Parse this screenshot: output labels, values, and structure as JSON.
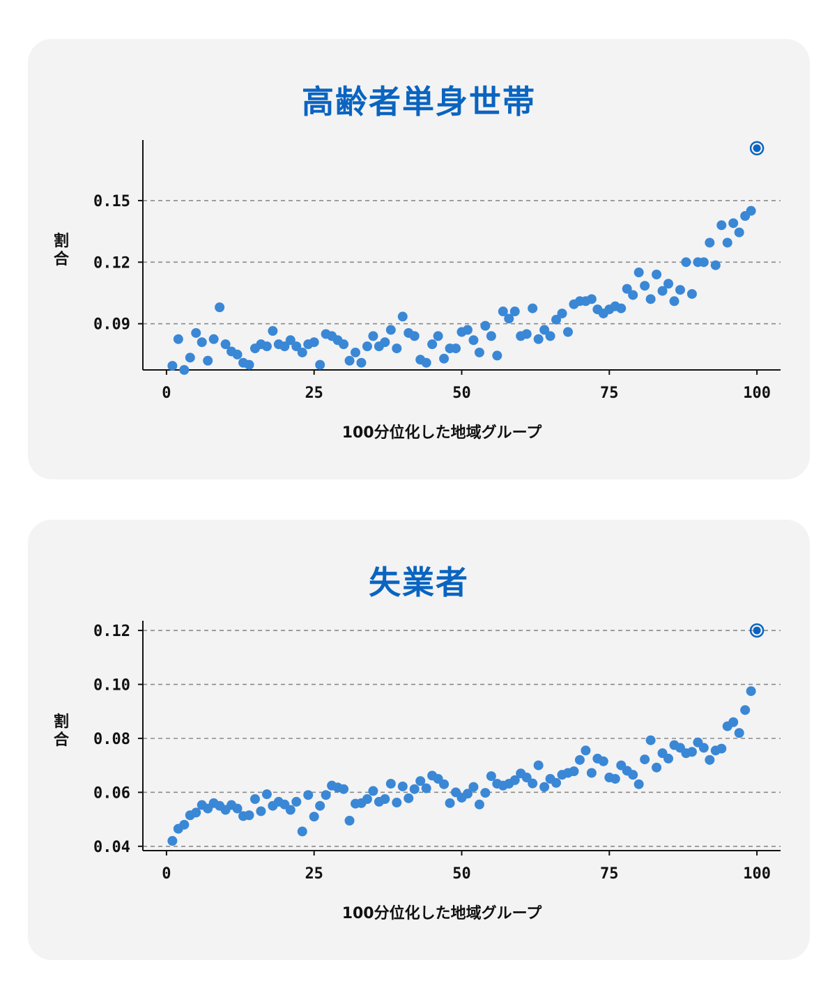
{
  "accent_color": "#0a64c0",
  "point_color": "#3a87d6",
  "chart_data": [
    {
      "type": "scatter",
      "title": "高齢者単身世帯",
      "xlabel": "100分位化した地域グループ",
      "ylabel": "割合",
      "xlim": [
        -4,
        104
      ],
      "ylim": [
        0.0675,
        0.1795
      ],
      "xticks": [
        0,
        25,
        50,
        75,
        100
      ],
      "xtick_labels": [
        "0",
        "25",
        "50",
        "75",
        "100"
      ],
      "yticks": [
        0.09,
        0.12,
        0.15
      ],
      "ytick_labels": [
        "0.09",
        "0.12",
        "0.15"
      ],
      "grid": "horizontal dashed",
      "x": [
        1,
        2,
        3,
        4,
        5,
        6,
        7,
        8,
        9,
        10,
        11,
        12,
        13,
        14,
        15,
        16,
        17,
        18,
        19,
        20,
        21,
        22,
        23,
        24,
        25,
        26,
        27,
        28,
        29,
        30,
        31,
        32,
        33,
        34,
        35,
        36,
        37,
        38,
        39,
        40,
        41,
        42,
        43,
        44,
        45,
        46,
        47,
        48,
        49,
        50,
        51,
        52,
        53,
        54,
        55,
        56,
        57,
        58,
        59,
        60,
        61,
        62,
        63,
        64,
        65,
        66,
        67,
        68,
        69,
        70,
        71,
        72,
        73,
        74,
        75,
        76,
        77,
        78,
        79,
        80,
        81,
        82,
        83,
        84,
        85,
        86,
        87,
        88,
        89,
        90,
        91,
        92,
        93,
        94,
        95,
        96,
        97,
        98,
        99,
        100
      ],
      "y": [
        0.0695,
        0.0825,
        0.0675,
        0.0735,
        0.0855,
        0.081,
        0.072,
        0.0825,
        0.098,
        0.08,
        0.0765,
        0.075,
        0.071,
        0.07,
        0.078,
        0.08,
        0.079,
        0.0865,
        0.08,
        0.079,
        0.082,
        0.079,
        0.076,
        0.08,
        0.081,
        0.07,
        0.085,
        0.084,
        0.082,
        0.08,
        0.072,
        0.076,
        0.071,
        0.079,
        0.084,
        0.079,
        0.081,
        0.087,
        0.078,
        0.0935,
        0.0855,
        0.084,
        0.0725,
        0.071,
        0.08,
        0.084,
        0.073,
        0.078,
        0.078,
        0.086,
        0.087,
        0.082,
        0.076,
        0.089,
        0.084,
        0.0745,
        0.096,
        0.0925,
        0.096,
        0.084,
        0.085,
        0.0975,
        0.0825,
        0.087,
        0.084,
        0.092,
        0.095,
        0.086,
        0.0995,
        0.101,
        0.101,
        0.102,
        0.097,
        0.095,
        0.097,
        0.0985,
        0.0975,
        0.107,
        0.104,
        0.115,
        0.1085,
        0.102,
        0.114,
        0.106,
        0.1095,
        0.101,
        0.1065,
        0.12,
        0.1045,
        0.12,
        0.12,
        0.1295,
        0.1185,
        0.138,
        0.1295,
        0.139,
        0.1345,
        0.1425,
        0.145,
        0.1755
      ],
      "highlight_x": 100
    },
    {
      "type": "scatter",
      "title": "失業者",
      "xlabel": "100分位化した地域グループ",
      "ylabel": "割合",
      "xlim": [
        -4,
        104
      ],
      "ylim": [
        0.0384,
        0.1236
      ],
      "xticks": [
        0,
        25,
        50,
        75,
        100
      ],
      "xtick_labels": [
        "0",
        "25",
        "50",
        "75",
        "100"
      ],
      "yticks": [
        0.04,
        0.06,
        0.08,
        0.1,
        0.12
      ],
      "ytick_labels": [
        "0.04",
        "0.06",
        "0.08",
        "0.10",
        "0.12"
      ],
      "grid": "horizontal dashed",
      "x": [
        1,
        2,
        3,
        4,
        5,
        6,
        7,
        8,
        9,
        10,
        11,
        12,
        13,
        14,
        15,
        16,
        17,
        18,
        19,
        20,
        21,
        22,
        23,
        24,
        25,
        26,
        27,
        28,
        29,
        30,
        31,
        32,
        33,
        34,
        35,
        36,
        37,
        38,
        39,
        40,
        41,
        42,
        43,
        44,
        45,
        46,
        47,
        48,
        49,
        50,
        51,
        52,
        53,
        54,
        55,
        56,
        57,
        58,
        59,
        60,
        61,
        62,
        63,
        64,
        65,
        66,
        67,
        68,
        69,
        70,
        71,
        72,
        73,
        74,
        75,
        76,
        77,
        78,
        79,
        80,
        81,
        82,
        83,
        84,
        85,
        86,
        87,
        88,
        89,
        90,
        91,
        92,
        93,
        94,
        95,
        96,
        97,
        98,
        99,
        100
      ],
      "y": [
        0.042,
        0.0465,
        0.048,
        0.0515,
        0.0525,
        0.0553,
        0.054,
        0.056,
        0.055,
        0.0535,
        0.0553,
        0.054,
        0.0512,
        0.0515,
        0.0575,
        0.053,
        0.0593,
        0.055,
        0.0565,
        0.0555,
        0.0535,
        0.0565,
        0.0455,
        0.059,
        0.051,
        0.055,
        0.059,
        0.0625,
        0.0618,
        0.0612,
        0.0495,
        0.0558,
        0.056,
        0.0575,
        0.0605,
        0.0565,
        0.0575,
        0.0632,
        0.0562,
        0.0622,
        0.0578,
        0.0612,
        0.0642,
        0.0615,
        0.0662,
        0.065,
        0.063,
        0.056,
        0.06,
        0.058,
        0.0595,
        0.062,
        0.0555,
        0.0598,
        0.066,
        0.0632,
        0.0625,
        0.0632,
        0.0645,
        0.067,
        0.0655,
        0.0633,
        0.07,
        0.062,
        0.065,
        0.0635,
        0.0665,
        0.0672,
        0.0678,
        0.072,
        0.0755,
        0.0672,
        0.0725,
        0.0715,
        0.0655,
        0.065,
        0.07,
        0.068,
        0.0665,
        0.063,
        0.0722,
        0.0793,
        0.0692,
        0.0745,
        0.0725,
        0.0775,
        0.0765,
        0.0745,
        0.075,
        0.0785,
        0.0765,
        0.072,
        0.0755,
        0.0762,
        0.0845,
        0.086,
        0.082,
        0.0905,
        0.0975,
        0.12
      ],
      "highlight_x": 100
    }
  ]
}
